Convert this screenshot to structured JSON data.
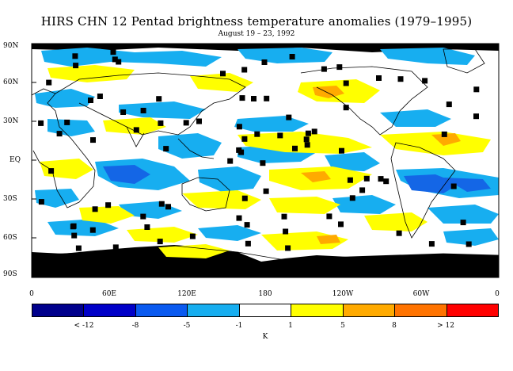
{
  "title": "HIRS CHN 12 Pentad brightness temperature anomalies (1979–1995)",
  "subtitle": "August 19 – 23, 1992",
  "map": {
    "lat_labels": [
      "90N",
      "60N",
      "30N",
      "EQ",
      "30S",
      "60S",
      "90S"
    ],
    "lon_labels": [
      "0",
      "60E",
      "120E",
      "180",
      "120W",
      "60W",
      "0"
    ],
    "colors": {
      "cyan": "#17aef0",
      "blue": "#1466e6",
      "navy": "#0a2dc0",
      "yellow": "#ffff00",
      "orange": "#ffaa00",
      "missing": "#000000",
      "coast": "#000000"
    }
  },
  "colorbar": {
    "colors": [
      "#00008c",
      "#0000c8",
      "#0a5af0",
      "#17aef0",
      "#ffffff",
      "#ffff00",
      "#ffaa00",
      "#ff7300",
      "#ff0000"
    ],
    "labels": [
      "< -12",
      "-8",
      "-5",
      "-1",
      "1",
      "5",
      "8",
      "> 12"
    ],
    "unit": "K"
  }
}
